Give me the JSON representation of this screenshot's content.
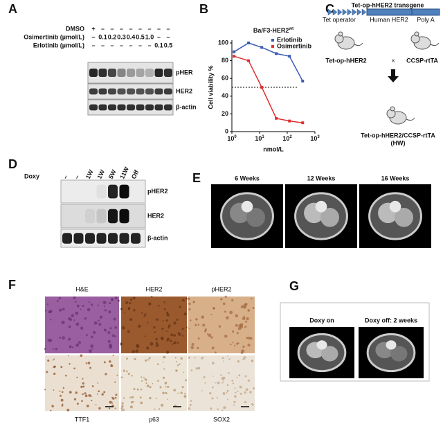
{
  "panels": {
    "A": {
      "label": "A",
      "rows": [
        {
          "name": "DMSO",
          "lanes": [
            "+",
            "–",
            "–",
            "–",
            "–",
            "–",
            "–",
            "–",
            "–"
          ]
        },
        {
          "name": "Osimertinib (µmol/L)",
          "lanes": [
            "–",
            "0.1",
            "0.2",
            "0.3",
            "0.4",
            "0.5",
            "1.0",
            "–",
            "–"
          ]
        },
        {
          "name": "Erlotinib (µmol/L)",
          "lanes": [
            "–",
            "–",
            "–",
            "–",
            "–",
            "–",
            "–",
            "0.1",
            "0.5"
          ]
        }
      ],
      "blots": [
        "pHER",
        "HER2",
        "β-actin"
      ]
    },
    "B": {
      "label": "B",
      "chart": {
        "type": "line",
        "title": "Ba/F3-HER2",
        "title_sup": "wt",
        "y_label": "Cell viability %",
        "x_label": "nmol/L",
        "log_x": true,
        "xlim": [
          1,
          1000
        ],
        "xticks": [
          {
            "value": 1,
            "label": "10",
            "exp": "0"
          },
          {
            "value": 10,
            "label": "10",
            "exp": "1"
          },
          {
            "value": 100,
            "label": "10",
            "exp": "2"
          },
          {
            "value": 1000,
            "label": "10",
            "exp": "3"
          }
        ],
        "ylim": [
          0,
          100
        ],
        "yticks": [
          0,
          20,
          40,
          60,
          80,
          100
        ],
        "reference_line": 50,
        "series": [
          {
            "name": "Erlotinib",
            "color": "#3a5bb5",
            "x": [
              1.2,
              4,
              12,
              40,
              120,
              360
            ],
            "values": [
              90,
              100,
              95,
              88,
              85,
              57
            ]
          },
          {
            "name": "Osimertinib",
            "color": "#e03030",
            "x": [
              1.2,
              4,
              12,
              40,
              120,
              360
            ],
            "values": [
              85,
              80,
              50,
              15,
              12,
              10
            ]
          }
        ]
      }
    },
    "C": {
      "label": "C",
      "transgene": "Tet-op-hHER2 transgene",
      "parts": [
        "Tet operator",
        "Human HER2",
        "Poly A"
      ],
      "mouse1": "Tet-op-hHER2",
      "cross": "×",
      "mouse2": "CCSP-rtTA",
      "offspring": "Tet-op-hHER2/CCSP-rtTA",
      "offspring_code": "(HW)"
    },
    "D": {
      "label": "D",
      "row": "Doxy",
      "lanes": [
        "–",
        "–",
        "1W",
        "1W",
        "5W",
        "11W",
        "Off"
      ],
      "blots": [
        "pHER2",
        "HER2",
        "β-actin"
      ]
    },
    "E": {
      "label": "E",
      "times": [
        "6 Weeks",
        "12 Weeks",
        "16 Weeks"
      ]
    },
    "F": {
      "label": "F",
      "top": [
        "H&E",
        "HER2",
        "pHER2"
      ],
      "bottom": [
        "TTF1",
        "p63",
        "SOX2"
      ]
    },
    "G": {
      "label": "G",
      "images": [
        "Doxy on",
        "Doxy off: 2 weeks"
      ]
    }
  }
}
